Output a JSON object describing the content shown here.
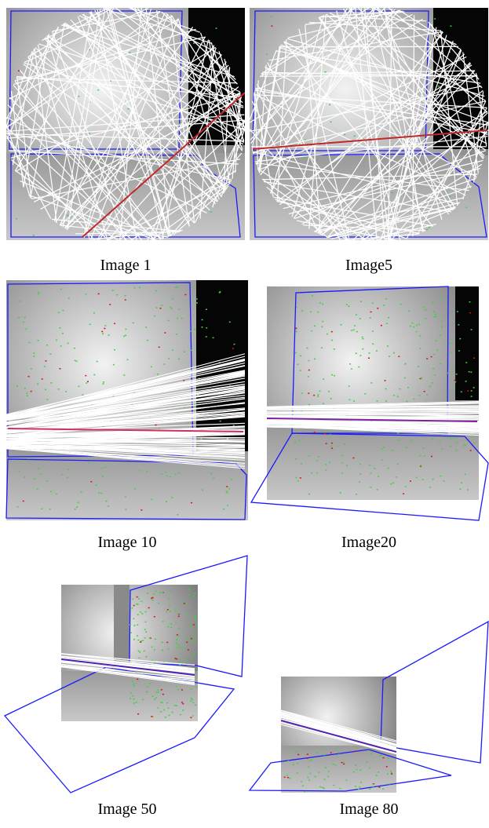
{
  "captions": [
    "Image 1",
    "Image5",
    "Image 10",
    "Image20",
    "Image 50",
    "Image 80"
  ]
}
